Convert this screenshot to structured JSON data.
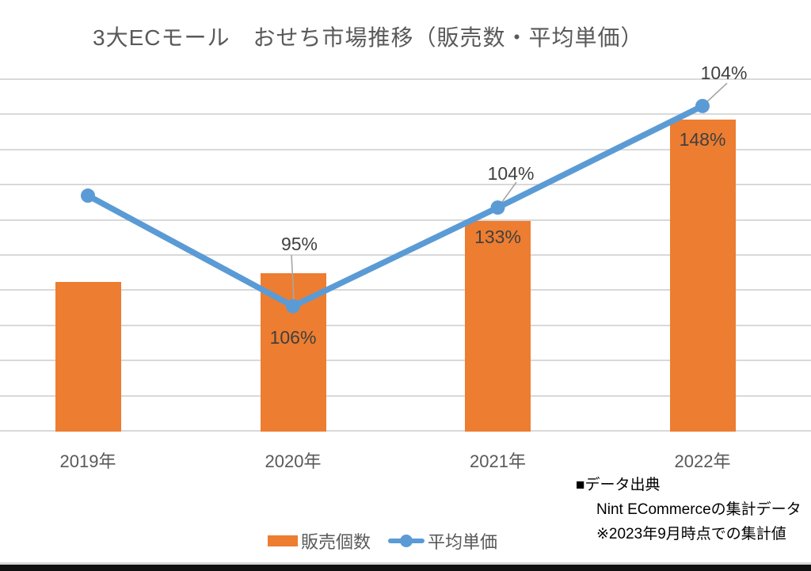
{
  "title": "3大ECモール　おせち市場推移（販売数・平均単価）",
  "legend": {
    "bar_label": "販売個数",
    "line_label": "平均単価"
  },
  "source": {
    "line1": "■データ出典",
    "line2": "Nint ECommerceの集計データ",
    "line3": "※2023年9月時点での集計値"
  },
  "colors": {
    "bar": "#ED7D31",
    "line": "#5B9BD5",
    "grid": "#D9D9D9",
    "leader": "#A6A6A6",
    "title_text": "#595959",
    "axis_text": "#595959",
    "label_text": "#404040",
    "source_text": "#000000",
    "footer_bar": "#101010"
  },
  "chart_data": {
    "type": "bar+line combo",
    "title": "3大ECモール　おせち市場推移（販売数・平均単価）",
    "categories": [
      "2019年",
      "2020年",
      "2021年",
      "2022年"
    ],
    "series": [
      {
        "name": "販売個数",
        "type": "bar",
        "labels": [
          "",
          "106%",
          "133%",
          "148%"
        ],
        "label_meaning": "year-over-year ratio of units sold",
        "est_index_values": [
          100,
          106,
          141,
          209
        ]
      },
      {
        "name": "平均単価",
        "type": "line",
        "labels": [
          "",
          "95%",
          "104%",
          "104%"
        ],
        "label_meaning": "year-over-year ratio of average unit price",
        "est_index_values": [
          158,
          84,
          150,
          218
        ]
      }
    ],
    "xlabel": "",
    "ylabel": "",
    "y_axis_ticks_visible": false,
    "gridlines": true,
    "legend_position": "bottom"
  }
}
